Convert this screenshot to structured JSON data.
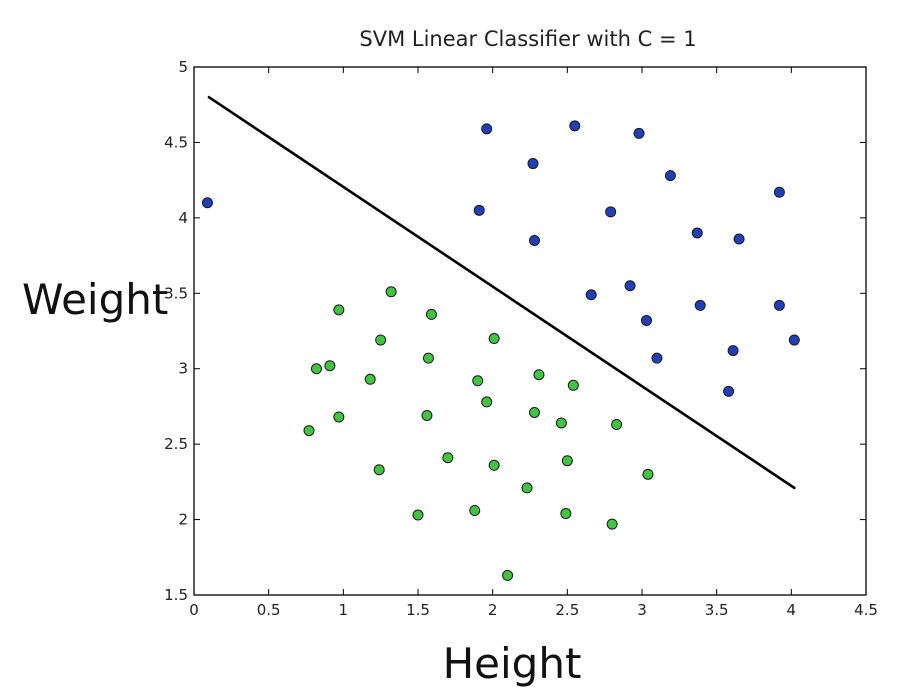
{
  "chart_data": {
    "type": "scatter",
    "title": "SVM Linear Classifier with C = 1",
    "xlabel": "Height",
    "ylabel": "Weight",
    "xlim": [
      0,
      4.5
    ],
    "ylim": [
      1.5,
      5
    ],
    "xticks": [
      "0",
      "0.5",
      "1",
      "1.5",
      "2",
      "2.5",
      "3",
      "3.5",
      "4",
      "4.5"
    ],
    "yticks": [
      "1.5",
      "2",
      "2.5",
      "3",
      "3.5",
      "4",
      "4.5",
      "5"
    ],
    "grid": false,
    "legend": "none",
    "series": [
      {
        "color": "#1f3fbf",
        "points": [
          [
            0.09,
            4.1
          ],
          [
            1.96,
            4.59
          ],
          [
            2.55,
            4.61
          ],
          [
            2.98,
            4.56
          ],
          [
            2.27,
            4.36
          ],
          [
            3.19,
            4.28
          ],
          [
            3.92,
            4.17
          ],
          [
            1.91,
            4.05
          ],
          [
            2.79,
            4.04
          ],
          [
            2.28,
            3.85
          ],
          [
            3.37,
            3.9
          ],
          [
            3.65,
            3.86
          ],
          [
            2.66,
            3.49
          ],
          [
            2.92,
            3.55
          ],
          [
            3.39,
            3.42
          ],
          [
            3.92,
            3.42
          ],
          [
            3.03,
            3.32
          ],
          [
            4.02,
            3.19
          ],
          [
            3.61,
            3.12
          ],
          [
            3.1,
            3.07
          ],
          [
            3.58,
            2.85
          ]
        ]
      },
      {
        "color": "#3ec63e",
        "points": [
          [
            1.32,
            3.51
          ],
          [
            0.97,
            3.39
          ],
          [
            1.59,
            3.36
          ],
          [
            1.25,
            3.19
          ],
          [
            2.01,
            3.2
          ],
          [
            1.57,
            3.07
          ],
          [
            0.91,
            3.02
          ],
          [
            0.82,
            3.0
          ],
          [
            1.18,
            2.93
          ],
          [
            2.31,
            2.96
          ],
          [
            1.9,
            2.92
          ],
          [
            2.54,
            2.89
          ],
          [
            1.96,
            2.78
          ],
          [
            0.97,
            2.68
          ],
          [
            1.56,
            2.69
          ],
          [
            2.28,
            2.71
          ],
          [
            2.46,
            2.64
          ],
          [
            2.83,
            2.63
          ],
          [
            0.77,
            2.59
          ],
          [
            1.7,
            2.41
          ],
          [
            2.5,
            2.39
          ],
          [
            2.01,
            2.36
          ],
          [
            1.24,
            2.33
          ],
          [
            3.04,
            2.3
          ],
          [
            2.23,
            2.21
          ],
          [
            1.88,
            2.06
          ],
          [
            2.49,
            2.04
          ],
          [
            1.5,
            2.03
          ],
          [
            2.8,
            1.97
          ],
          [
            2.1,
            1.63
          ]
        ]
      }
    ],
    "decision_boundary": {
      "x": [
        0.1,
        4.02
      ],
      "y": [
        4.8,
        2.21
      ]
    }
  }
}
